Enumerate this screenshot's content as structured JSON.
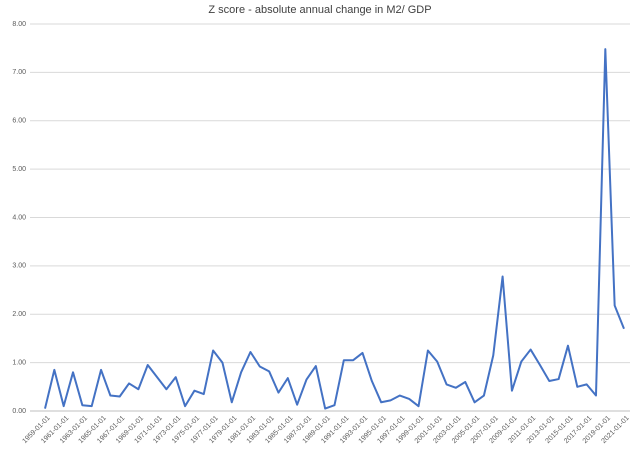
{
  "chart_data": {
    "type": "line",
    "title": "Z score - absolute annual change in M2/ GDP",
    "categories": [
      "1959-01-01",
      null,
      "1961-01-01",
      null,
      "1963-01-01",
      null,
      "1965-01-01",
      null,
      "1967-01-01",
      null,
      "1969-01-01",
      null,
      "1971-01-01",
      null,
      "1973-01-01",
      null,
      "1975-01-01",
      null,
      "1977-01-01",
      null,
      "1979-01-01",
      null,
      "1981-01-01",
      null,
      "1983-01-01",
      null,
      "1985-01-01",
      null,
      "1987-01-01",
      null,
      "1989-01-01",
      null,
      "1991-01-01",
      null,
      "1993-01-01",
      null,
      "1995-01-01",
      null,
      "1997-01-01",
      null,
      "1999-01-01",
      null,
      "2001-01-01",
      null,
      "2003-01-01",
      null,
      "2005-01-01",
      null,
      "2007-01-01",
      null,
      "2009-01-01",
      null,
      "2011-01-01",
      null,
      "2013-01-01",
      null,
      "2015-01-01",
      null,
      "2017-01-01",
      null,
      "2019-01-01",
      null,
      "2021-01-01"
    ],
    "values": [
      0.05,
      0.85,
      0.1,
      0.8,
      0.12,
      0.1,
      0.85,
      0.32,
      0.3,
      0.57,
      0.45,
      0.95,
      0.7,
      0.45,
      0.7,
      0.1,
      0.42,
      0.35,
      1.25,
      1.0,
      0.18,
      0.8,
      1.22,
      0.92,
      0.82,
      0.38,
      0.68,
      0.13,
      0.65,
      0.93,
      0.05,
      0.12,
      1.05,
      1.05,
      1.2,
      0.62,
      0.18,
      0.22,
      0.32,
      0.25,
      0.1,
      1.25,
      1.02,
      0.55,
      0.48,
      0.6,
      0.18,
      0.32,
      1.15,
      2.78,
      0.42,
      1.02,
      1.27,
      0.95,
      0.62,
      0.66,
      1.35,
      0.5,
      0.55,
      0.32,
      7.48,
      2.18,
      1.7
    ],
    "color": "#4472c4",
    "ylim": [
      0,
      8
    ],
    "yticks": [
      {
        "value": 0,
        "label": "0.00"
      },
      {
        "value": 1,
        "label": "1.00"
      },
      {
        "value": 2,
        "label": "2.00"
      },
      {
        "value": 3,
        "label": "3.00"
      },
      {
        "value": 4,
        "label": "4.00"
      },
      {
        "value": 5,
        "label": "5.00"
      },
      {
        "value": 6,
        "label": "6.00"
      },
      {
        "value": 7,
        "label": "7.00"
      },
      {
        "value": 8,
        "label": "8.00"
      }
    ],
    "grid": true
  }
}
